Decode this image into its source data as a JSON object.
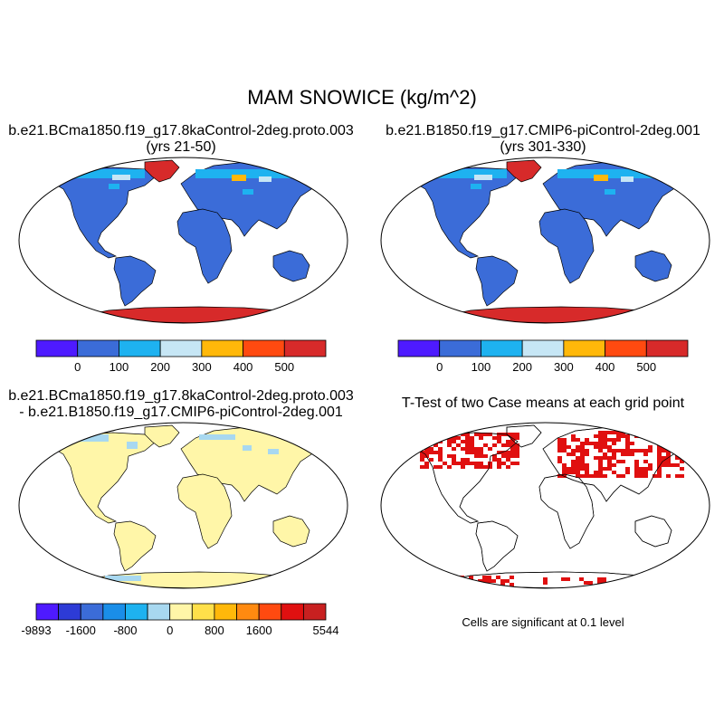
{
  "title": "MAM SNOWICE (kg/m^2)",
  "panels": [
    {
      "id": "case",
      "title_line1": "b.e21.BCma1850.f19_g17.8kaControl-2deg.proto.003",
      "title_line2": "(yrs 21-50)"
    },
    {
      "id": "control",
      "title_line1": "b.e21.B1850.f19_g17.CMIP6-piControl-2deg.001",
      "title_line2": "(yrs 301-330)"
    },
    {
      "id": "difference",
      "title_line1": "b.e21.BCma1850.f19_g17.8kaControl-2deg.proto.003",
      "title_line2": "- b.e21.B1850.f19_g17.CMIP6-piControl-2deg.001"
    },
    {
      "id": "ttest",
      "title_line1": "T-Test of two Case means at each grid point",
      "title_line2": ""
    }
  ],
  "colorbar_main": {
    "colors": [
      "#4e1aff",
      "#3b6cd8",
      "#1eb2f0",
      "#c6e6f5",
      "#ffb80a",
      "#ff4a10",
      "#d72a2a"
    ],
    "labels": [
      "0",
      "100",
      "200",
      "300",
      "400",
      "500"
    ]
  },
  "colorbar_diff": {
    "colors": [
      "#4e1aff",
      "#2d3bd6",
      "#3b6cd8",
      "#1a8ee8",
      "#1eb2f0",
      "#a8d8f0",
      "#fff6a8",
      "#ffe04a",
      "#ffb80a",
      "#ff8a10",
      "#ff4a10",
      "#e01010",
      "#c82020"
    ],
    "labels": [
      "-9893",
      "-1600",
      "-800",
      "0",
      "800",
      "1600",
      "5544"
    ]
  },
  "colors": {
    "land": "#3b6cd8",
    "antarctica": "#d72a2a",
    "snow_light": "#1eb2f0",
    "snow_mid": "#c6e6f5",
    "snow_orange": "#ffb80a",
    "diff_fill": "#fff6a8",
    "diff_neg": "#a8d8f0",
    "signif": "#e01010"
  },
  "significance_note": "Cells are significant at 0.1 level"
}
